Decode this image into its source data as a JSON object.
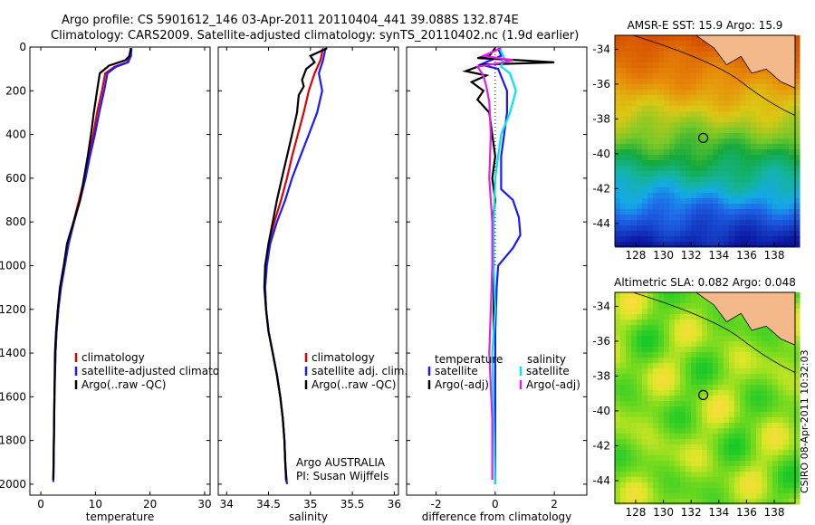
{
  "header": {
    "line1": "Argo profile: CS 5901612_146 03-Apr-2011 20110404_441 39.088S 132.874E",
    "line2": "Climatology: CARS2009. Satellite-adjusted climatology: synTS_20110402.nc (1.9d earlier)"
  },
  "colors": {
    "climatology": "#e00000",
    "satellite": "#1a1aff",
    "argo": "#000000",
    "cyan": "#00e5ee",
    "magenta": "#e020e0",
    "land": "#f4b98a"
  },
  "chart_data": [
    {
      "type": "line",
      "xlabel": "temperature",
      "ylabel": "",
      "xlim": [
        -2,
        31
      ],
      "ylim": [
        2050,
        0
      ],
      "xticks": [
        0,
        10,
        20,
        30
      ],
      "yticks": [
        0,
        200,
        400,
        600,
        800,
        1000,
        1200,
        1400,
        1600,
        1800,
        2000
      ],
      "legend": {
        "position": "lower-right",
        "entries": [
          "climatology",
          "satellite-adjusted climatology",
          "Argo(..raw -QC)"
        ]
      },
      "series": [
        {
          "name": "climatology",
          "color": "red",
          "points": [
            [
              16.5,
              5
            ],
            [
              16.4,
              40
            ],
            [
              15.8,
              70
            ],
            [
              13.5,
              90
            ],
            [
              11.8,
              120
            ],
            [
              11.2,
              200
            ],
            [
              10.3,
              300
            ],
            [
              9.6,
              400
            ],
            [
              8.8,
              500
            ],
            [
              8.0,
              600
            ],
            [
              7.0,
              700
            ],
            [
              6.0,
              800
            ],
            [
              5.0,
              900
            ],
            [
              4.3,
              1000
            ],
            [
              3.6,
              1100
            ],
            [
              3.2,
              1200
            ],
            [
              2.9,
              1300
            ],
            [
              2.7,
              1400
            ],
            [
              2.5,
              1600
            ],
            [
              2.4,
              1800
            ],
            [
              2.3,
              1980
            ]
          ]
        },
        {
          "name": "satellite-adjusted climatology",
          "color": "blue",
          "points": [
            [
              16.6,
              5
            ],
            [
              16.5,
              40
            ],
            [
              16.0,
              70
            ],
            [
              13.8,
              90
            ],
            [
              12.2,
              120
            ],
            [
              11.6,
              200
            ],
            [
              10.7,
              300
            ],
            [
              9.9,
              400
            ],
            [
              9.0,
              500
            ],
            [
              8.2,
              600
            ],
            [
              7.2,
              700
            ],
            [
              6.1,
              800
            ],
            [
              5.1,
              900
            ],
            [
              4.4,
              1000
            ],
            [
              3.7,
              1100
            ],
            [
              3.2,
              1200
            ],
            [
              2.9,
              1300
            ],
            [
              2.7,
              1400
            ],
            [
              2.5,
              1600
            ],
            [
              2.4,
              1800
            ],
            [
              2.3,
              1990
            ]
          ]
        },
        {
          "name": "Argo(..raw -QC)",
          "color": "black",
          "points": [
            [
              16.5,
              5
            ],
            [
              16.2,
              40
            ],
            [
              15.5,
              60
            ],
            [
              12.5,
              85
            ],
            [
              10.8,
              120
            ],
            [
              10.3,
              200
            ],
            [
              9.7,
              300
            ],
            [
              9.2,
              400
            ],
            [
              8.6,
              500
            ],
            [
              7.9,
              600
            ],
            [
              7.2,
              700
            ],
            [
              6.0,
              800
            ],
            [
              4.8,
              900
            ],
            [
              4.2,
              1000
            ],
            [
              3.5,
              1100
            ],
            [
              3.1,
              1200
            ],
            [
              2.8,
              1300
            ],
            [
              2.6,
              1400
            ],
            [
              2.5,
              1600
            ],
            [
              2.4,
              1800
            ],
            [
              2.3,
              1980
            ]
          ]
        }
      ]
    },
    {
      "type": "line",
      "xlabel": "salinity",
      "xlim": [
        33.9,
        36.05
      ],
      "ylim": [
        2050,
        0
      ],
      "xticks": [
        34,
        34.5,
        35,
        35.5,
        36
      ],
      "legend": {
        "position": "lower-right",
        "entries": [
          "climatology",
          "satellite adj. clim.",
          "Argo(..raw -QC)"
        ]
      },
      "annotation": [
        "Argo AUSTRALIA",
        "PI: Susan Wijffels"
      ],
      "series": [
        {
          "name": "climatology",
          "color": "red",
          "points": [
            [
              35.15,
              5
            ],
            [
              35.12,
              60
            ],
            [
              35.05,
              120
            ],
            [
              34.98,
              200
            ],
            [
              34.92,
              300
            ],
            [
              34.85,
              400
            ],
            [
              34.78,
              500
            ],
            [
              34.72,
              600
            ],
            [
              34.65,
              700
            ],
            [
              34.57,
              800
            ],
            [
              34.5,
              900
            ],
            [
              34.47,
              1000
            ],
            [
              34.46,
              1100
            ],
            [
              34.47,
              1200
            ],
            [
              34.5,
              1300
            ],
            [
              34.55,
              1400
            ],
            [
              34.6,
              1500
            ],
            [
              34.64,
              1600
            ],
            [
              34.67,
              1700
            ],
            [
              34.69,
              1800
            ],
            [
              34.7,
              1900
            ],
            [
              34.71,
              1990
            ]
          ]
        },
        {
          "name": "satellite adj. clim.",
          "color": "blue",
          "points": [
            [
              35.18,
              5
            ],
            [
              35.15,
              60
            ],
            [
              35.1,
              120
            ],
            [
              35.14,
              200
            ],
            [
              35.08,
              300
            ],
            [
              34.98,
              400
            ],
            [
              34.88,
              500
            ],
            [
              34.78,
              600
            ],
            [
              34.7,
              700
            ],
            [
              34.6,
              800
            ],
            [
              34.52,
              900
            ],
            [
              34.48,
              1000
            ],
            [
              34.46,
              1100
            ],
            [
              34.47,
              1200
            ],
            [
              34.5,
              1300
            ],
            [
              34.55,
              1400
            ],
            [
              34.6,
              1500
            ],
            [
              34.64,
              1600
            ],
            [
              34.67,
              1700
            ],
            [
              34.69,
              1800
            ],
            [
              34.7,
              1900
            ],
            [
              34.72,
              2000
            ]
          ]
        },
        {
          "name": "Argo(..raw -QC)",
          "color": "black",
          "points": [
            [
              35.2,
              5
            ],
            [
              35.0,
              40
            ],
            [
              35.05,
              70
            ],
            [
              34.95,
              100
            ],
            [
              34.9,
              150
            ],
            [
              34.92,
              180
            ],
            [
              34.86,
              220
            ],
            [
              34.84,
              300
            ],
            [
              34.78,
              400
            ],
            [
              34.72,
              500
            ],
            [
              34.66,
              600
            ],
            [
              34.6,
              700
            ],
            [
              34.55,
              800
            ],
            [
              34.5,
              900
            ],
            [
              34.46,
              1000
            ],
            [
              34.45,
              1100
            ],
            [
              34.47,
              1200
            ],
            [
              34.5,
              1300
            ],
            [
              34.55,
              1400
            ],
            [
              34.6,
              1500
            ],
            [
              34.64,
              1600
            ],
            [
              34.67,
              1700
            ],
            [
              34.69,
              1800
            ],
            [
              34.7,
              1900
            ],
            [
              34.71,
              1980
            ]
          ]
        }
      ]
    },
    {
      "type": "line",
      "xlabel": "difference from climatology",
      "xlim": [
        -3,
        3.1
      ],
      "ylim": [
        2050,
        0
      ],
      "xticks": [
        -2,
        0,
        2
      ],
      "legend": {
        "position": "lower-right",
        "groups": [
          {
            "title": "temperature",
            "entries": [
              "satellite",
              "Argo(-adj)"
            ]
          },
          {
            "title": "salinity",
            "entries": [
              "satellite",
              "Argo(-adj)"
            ]
          }
        ]
      },
      "series": [
        {
          "name": "temperature satellite",
          "color": "blue",
          "points": [
            [
              0.1,
              5
            ],
            [
              0.2,
              40
            ],
            [
              -0.5,
              80
            ],
            [
              0.1,
              100
            ],
            [
              0.4,
              200
            ],
            [
              0.4,
              300
            ],
            [
              0.3,
              400
            ],
            [
              0.2,
              500
            ],
            [
              0.2,
              600
            ],
            [
              0.2,
              650
            ],
            [
              0.6,
              700
            ],
            [
              0.8,
              780
            ],
            [
              0.85,
              860
            ],
            [
              0.6,
              920
            ],
            [
              0.1,
              1000
            ],
            [
              0.05,
              1100
            ],
            [
              0.0,
              1300
            ],
            [
              0.0,
              1600
            ],
            [
              0.0,
              2000
            ]
          ]
        },
        {
          "name": "temperature Argo(-adj)",
          "color": "black",
          "points": [
            [
              0.0,
              5
            ],
            [
              -0.2,
              40
            ],
            [
              -0.6,
              50
            ],
            [
              0.8,
              60
            ],
            [
              2.0,
              70
            ],
            [
              -0.4,
              80
            ],
            [
              -1.0,
              110
            ],
            [
              -0.3,
              130
            ],
            [
              -0.8,
              160
            ],
            [
              -0.4,
              200
            ],
            [
              -0.6,
              240
            ],
            [
              -0.2,
              300
            ],
            [
              -0.1,
              400
            ],
            [
              0.0,
              500
            ],
            [
              -0.1,
              600
            ],
            [
              0.0,
              700
            ],
            [
              -0.1,
              800
            ],
            [
              -0.05,
              1000
            ],
            [
              -0.05,
              1300
            ]
          ]
        },
        {
          "name": "salinity satellite",
          "color": "cyan",
          "points": [
            [
              0.15,
              5
            ],
            [
              0.3,
              50
            ],
            [
              0.2,
              90
            ],
            [
              0.5,
              120
            ],
            [
              0.7,
              200
            ],
            [
              0.5,
              300
            ],
            [
              0.2,
              400
            ],
            [
              0.1,
              500
            ],
            [
              0.0,
              600
            ],
            [
              -0.05,
              800
            ],
            [
              -0.05,
              1000
            ],
            [
              0.0,
              1200
            ],
            [
              -0.1,
              1400
            ],
            [
              0.0,
              2000
            ]
          ]
        },
        {
          "name": "salinity Argo(-adj)",
          "color": "magenta",
          "points": [
            [
              0.2,
              5
            ],
            [
              -0.4,
              40
            ],
            [
              0.6,
              60
            ],
            [
              0.3,
              70
            ],
            [
              -0.6,
              90
            ],
            [
              -0.4,
              130
            ],
            [
              -0.3,
              180
            ],
            [
              -0.2,
              250
            ],
            [
              -0.15,
              400
            ],
            [
              -0.2,
              600
            ],
            [
              -0.1,
              800
            ],
            [
              -0.1,
              1000
            ],
            [
              -0.15,
              1200
            ],
            [
              -0.2,
              1400
            ],
            [
              -0.1,
              1700
            ],
            [
              -0.1,
              1980
            ]
          ]
        }
      ]
    },
    {
      "type": "heatmap",
      "title": "AMSR-E SST: 15.9 Argo: 15.9",
      "xticks": [
        "128",
        "130",
        "132",
        "134",
        "136",
        "138"
      ],
      "yticks": [
        "-34",
        "-36",
        "-38",
        "-40",
        "-42",
        "-44"
      ],
      "xlim": [
        126.5,
        139.5
      ],
      "ylim": [
        -45.3,
        -33.2
      ],
      "marker": [
        132.874,
        -39.088
      ]
    },
    {
      "type": "heatmap",
      "title": "Altimetric SLA: 0.082 Argo: 0.048",
      "xticks": [
        "128",
        "130",
        "132",
        "134",
        "136",
        "138"
      ],
      "yticks": [
        "-34",
        "-36",
        "-38",
        "-40",
        "-42",
        "-44"
      ],
      "xlim": [
        126.5,
        139.5
      ],
      "ylim": [
        -45.3,
        -33.2
      ],
      "marker": [
        132.874,
        -39.088
      ]
    }
  ],
  "side_label": "CSIRO 08-Apr-2011 10:32:03"
}
